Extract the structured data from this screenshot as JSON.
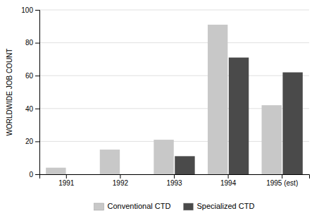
{
  "chart_data": {
    "type": "bar",
    "categories": [
      "1991",
      "1992",
      "1993",
      "1994",
      "1995 (est)"
    ],
    "series": [
      {
        "name": "Conventional CTD",
        "color": "#c8c8c8",
        "values": [
          4,
          15,
          21,
          91,
          42
        ]
      },
      {
        "name": "Specialized CTD",
        "color": "#4a4a4a",
        "values": [
          0,
          0,
          11,
          71,
          62
        ]
      }
    ],
    "ylabel": "WORLDWIDE JOB COUNT",
    "ylim": [
      0,
      100
    ],
    "yticks": [
      0,
      20,
      40,
      60,
      80,
      100
    ],
    "grid": true,
    "legend": "bottom"
  }
}
